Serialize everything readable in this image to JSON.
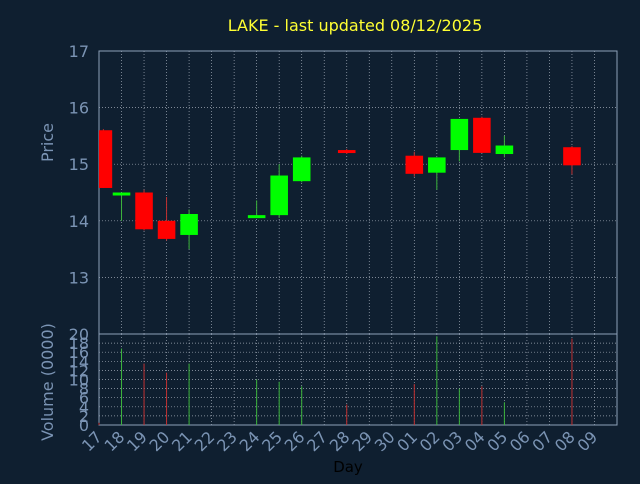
{
  "title": "LAKE - last updated 08/12/2025",
  "colors": {
    "background": "#0f1f30",
    "axis_text": "#7b94b4",
    "title": "#ffff33",
    "grid": "#c8d0dc",
    "frame": "#8ea0b8",
    "up": "#00ff00",
    "down": "#ff0000",
    "up_wick": "#3cb43c",
    "down_wick": "#c03030"
  },
  "chart_data": [
    {
      "type": "candlestick",
      "panel": "price",
      "ylabel": "Price",
      "ylim": [
        12,
        17
      ],
      "yticks": [
        12,
        13,
        14,
        15,
        16,
        17
      ],
      "xlim": [
        17,
        40
      ],
      "grid": true,
      "candles": [
        {
          "day": 17,
          "open": 15.6,
          "high": 15.62,
          "low": 14.58,
          "close": 14.58
        },
        {
          "day": 18,
          "open": 14.45,
          "high": 14.5,
          "low": 14.0,
          "close": 14.5
        },
        {
          "day": 19,
          "open": 14.5,
          "high": 14.55,
          "low": 13.83,
          "close": 13.85
        },
        {
          "day": 20,
          "open": 14.0,
          "high": 14.42,
          "low": 13.65,
          "close": 13.68
        },
        {
          "day": 21,
          "open": 13.75,
          "high": 14.2,
          "low": 13.5,
          "close": 14.12
        },
        {
          "day": 24,
          "open": 14.06,
          "high": 14.36,
          "low": 14.05,
          "close": 14.1
        },
        {
          "day": 25,
          "open": 14.1,
          "high": 15.0,
          "low": 14.05,
          "close": 14.8
        },
        {
          "day": 26,
          "open": 14.7,
          "high": 15.15,
          "low": 14.68,
          "close": 15.12
        },
        {
          "day": 28,
          "open": 15.25,
          "high": 15.27,
          "low": 15.18,
          "close": 15.2
        },
        {
          "day": 31,
          "open": 15.15,
          "high": 15.22,
          "low": 14.78,
          "close": 14.83
        },
        {
          "day": 32,
          "open": 14.85,
          "high": 15.12,
          "low": 14.55,
          "close": 15.12
        },
        {
          "day": 33,
          "open": 15.25,
          "high": 15.8,
          "low": 15.05,
          "close": 15.8
        },
        {
          "day": 34,
          "open": 15.82,
          "high": 15.84,
          "low": 15.2,
          "close": 15.2
        },
        {
          "day": 35,
          "open": 15.18,
          "high": 15.5,
          "low": 15.12,
          "close": 15.33
        },
        {
          "day": 38,
          "open": 15.3,
          "high": 15.32,
          "low": 14.82,
          "close": 14.98
        }
      ]
    },
    {
      "type": "bar",
      "panel": "volume",
      "ylabel": "Volume (0000)",
      "xlabel": "Day",
      "ylim": [
        0,
        20
      ],
      "yticks": [
        0,
        2,
        4,
        6,
        8,
        10,
        12,
        14,
        16,
        18,
        20
      ],
      "x_tick_labels": [
        "17",
        "18",
        "19",
        "20",
        "21",
        "22",
        "23",
        "24",
        "25",
        "26",
        "27",
        "28",
        "29",
        "30",
        "01",
        "02",
        "03",
        "04",
        "05",
        "06",
        "07",
        "08",
        "09"
      ],
      "grid": true,
      "bars": [
        {
          "day": 17,
          "value": 0.5,
          "direction": "down"
        },
        {
          "day": 18,
          "value": 16.8,
          "direction": "up"
        },
        {
          "day": 19,
          "value": 13.5,
          "direction": "down"
        },
        {
          "day": 20,
          "value": 11.5,
          "direction": "down"
        },
        {
          "day": 21,
          "value": 13.5,
          "direction": "up"
        },
        {
          "day": 24,
          "value": 10.0,
          "direction": "up"
        },
        {
          "day": 25,
          "value": 9.5,
          "direction": "up"
        },
        {
          "day": 26,
          "value": 8.5,
          "direction": "up"
        },
        {
          "day": 28,
          "value": 4.5,
          "direction": "down"
        },
        {
          "day": 31,
          "value": 9.0,
          "direction": "down"
        },
        {
          "day": 32,
          "value": 19.5,
          "direction": "up"
        },
        {
          "day": 33,
          "value": 8.0,
          "direction": "up"
        },
        {
          "day": 34,
          "value": 8.5,
          "direction": "down"
        },
        {
          "day": 35,
          "value": 5.0,
          "direction": "up"
        },
        {
          "day": 38,
          "value": 19.0,
          "direction": "down"
        }
      ]
    }
  ]
}
